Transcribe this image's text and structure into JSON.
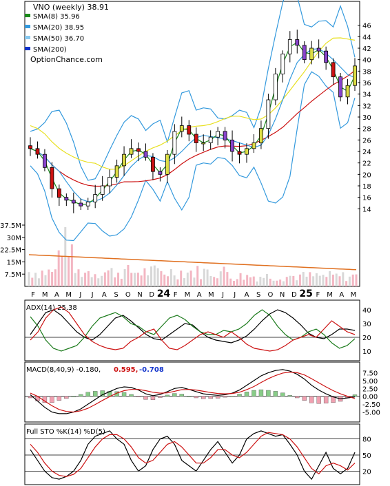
{
  "chart_data": [
    {
      "type": "candlestick",
      "panel": "price",
      "title": "VNO (weekly) 38.91",
      "watermark": "OptionChance.com",
      "legend": [
        {
          "label": "SMA(8) 35.96",
          "color": "#1a8a1a"
        },
        {
          "label": "SMA(20) 38.95",
          "color": "#3399dd"
        },
        {
          "label": "SMA(50) 36.70",
          "color": "#88c8ee"
        },
        {
          "label": "SMA(200)",
          "color": "#1133cc"
        }
      ],
      "ylim": [
        12,
        48
      ],
      "yticks": [
        "46",
        "44",
        "42",
        "40",
        "38",
        "36",
        "34",
        "32",
        "30",
        "28",
        "26",
        "24",
        "22",
        "20",
        "18",
        "16",
        "14"
      ],
      "volume_ticks": [
        "37.5M",
        "30M",
        "22.5M",
        "15M",
        "7.5M"
      ],
      "x_ticks": [
        "F",
        "M",
        "A",
        "M",
        "J",
        "J",
        "A",
        "S",
        "O",
        "N",
        "D",
        "24",
        "F",
        "M",
        "A",
        "M",
        "J",
        "J",
        "A",
        "S",
        "O",
        "N",
        "D",
        "25",
        "F",
        "M",
        "A",
        "M"
      ],
      "close": [
        24.5,
        23.5,
        21.2,
        17.5,
        16.0,
        15.5,
        15.0,
        14.5,
        15.2,
        16.5,
        18.0,
        19.5,
        21.5,
        23.5,
        24.5,
        24.0,
        23.0,
        20.5,
        20.0,
        23.5,
        27.5,
        28.5,
        27.0,
        25.5,
        25.5,
        26.5,
        27.5,
        26.0,
        24.0,
        23.5,
        24.5,
        25.5,
        28.0,
        33.0,
        37.5,
        41.0,
        43.5,
        42.5,
        40.0,
        42.0,
        41.5,
        39.5,
        37.0,
        33.5,
        35.5,
        38.9
      ],
      "sma8_last": 35.96,
      "sma20_last": 38.95,
      "sma50_last": 36.7
    },
    {
      "type": "line",
      "panel": "adx",
      "title": "ADX(14) 25.38",
      "ylim": [
        5,
        45
      ],
      "yticks": [
        "40",
        "30",
        "20",
        "10"
      ],
      "reference_line": 20,
      "series": [
        {
          "name": "ADX(14)",
          "color": "#000000",
          "values": [
            22,
            30,
            38,
            40,
            36,
            30,
            24,
            20,
            18,
            22,
            28,
            34,
            36,
            32,
            27,
            22,
            19,
            18,
            22,
            26,
            30,
            29,
            24,
            20,
            18,
            17,
            16,
            18,
            21,
            26,
            32,
            37,
            40,
            38,
            34,
            29,
            23,
            20,
            19,
            22,
            26,
            26,
            25
          ]
        },
        {
          "name": "+DI",
          "color": "#1a7a1a",
          "values": [
            35,
            28,
            18,
            12,
            10,
            12,
            14,
            20,
            28,
            34,
            36,
            38,
            35,
            30,
            28,
            24,
            22,
            28,
            34,
            36,
            33,
            28,
            24,
            22,
            22,
            25,
            24,
            26,
            30,
            36,
            40,
            36,
            28,
            22,
            18,
            20,
            24,
            26,
            22,
            16,
            12,
            14,
            19
          ]
        },
        {
          "name": "-DI",
          "color": "#cc1111",
          "values": [
            18,
            24,
            34,
            40,
            42,
            38,
            30,
            22,
            17,
            14,
            12,
            11,
            12,
            17,
            20,
            24,
            26,
            18,
            12,
            11,
            14,
            18,
            22,
            24,
            22,
            20,
            24,
            20,
            15,
            12,
            11,
            10,
            11,
            14,
            18,
            20,
            22,
            20,
            26,
            32,
            28,
            24,
            22
          ]
        }
      ]
    },
    {
      "type": "line",
      "panel": "macd",
      "title": "MACD(8,40,9) -0.180,",
      "macd_value": "0.595,",
      "signal_value": "-0.708",
      "ylim": [
        -7.5,
        10
      ],
      "yticks": [
        "7.50",
        "5.00",
        "2.50",
        "0.00",
        "-2.50",
        "-5.00"
      ],
      "series": [
        {
          "name": "MACD",
          "color": "#000000",
          "values": [
            0.5,
            -1.5,
            -3.5,
            -5.0,
            -5.5,
            -5.5,
            -5.0,
            -4.0,
            -2.5,
            -1.0,
            0.5,
            1.5,
            2.5,
            3.0,
            2.8,
            2.0,
            0.8,
            0.2,
            0.6,
            1.5,
            2.5,
            2.8,
            2.2,
            1.5,
            0.8,
            0.5,
            0.3,
            0.5,
            1.0,
            2.0,
            3.5,
            5.0,
            6.5,
            7.5,
            8.2,
            8.5,
            8.0,
            7.0,
            5.5,
            3.5,
            2.0,
            0.8,
            -0.2,
            -0.8,
            -0.5,
            -0.2
          ]
        },
        {
          "name": "Signal",
          "color": "#cc1111",
          "values": [
            1.0,
            0.0,
            -1.5,
            -3.0,
            -4.2,
            -4.8,
            -5.0,
            -4.6,
            -3.8,
            -2.6,
            -1.3,
            -0.1,
            1.0,
            1.8,
            2.2,
            2.2,
            1.8,
            1.3,
            1.0,
            1.1,
            1.6,
            2.1,
            2.2,
            2.0,
            1.6,
            1.2,
            0.9,
            0.8,
            0.9,
            1.3,
            2.1,
            3.1,
            4.4,
            5.6,
            6.6,
            7.4,
            7.7,
            7.5,
            6.8,
            5.6,
            4.3,
            3.0,
            1.8,
            0.8,
            0.0,
            -0.7
          ]
        },
        {
          "name": "Histogram",
          "color": "#33aa33",
          "values": [
            -0.5,
            -1.5,
            -2.0,
            -2.0,
            -1.3,
            -0.7,
            0.0,
            0.6,
            1.3,
            1.6,
            1.8,
            1.6,
            1.5,
            1.2,
            0.6,
            -0.2,
            -1.0,
            -1.1,
            -0.4,
            0.4,
            0.9,
            0.7,
            0.0,
            -0.5,
            -0.8,
            -0.7,
            -0.6,
            -0.3,
            0.1,
            0.7,
            1.4,
            1.9,
            2.1,
            1.9,
            1.6,
            1.1,
            0.3,
            -0.5,
            -1.3,
            -2.1,
            -2.3,
            -2.2,
            -2.0,
            -1.6,
            -0.5,
            0.5
          ]
        }
      ]
    },
    {
      "type": "line",
      "panel": "stochastic",
      "title": "Full STO %K(14) %D(5)",
      "ylim": [
        0,
        100
      ],
      "yticks": [
        "80",
        "50",
        "20"
      ],
      "reference_lines": [
        80,
        50,
        20
      ],
      "series": [
        {
          "name": "%K(14)",
          "color": "#000000",
          "values": [
            60,
            40,
            20,
            8,
            5,
            10,
            20,
            40,
            70,
            85,
            90,
            95,
            80,
            70,
            40,
            20,
            30,
            60,
            80,
            85,
            70,
            40,
            30,
            20,
            40,
            60,
            75,
            55,
            35,
            50,
            80,
            90,
            95,
            90,
            85,
            88,
            70,
            50,
            20,
            5,
            30,
            55,
            25,
            15,
            25,
            55
          ]
        },
        {
          "name": "%D(5)",
          "color": "#cc1111",
          "values": [
            70,
            55,
            35,
            20,
            12,
            10,
            14,
            25,
            45,
            65,
            80,
            88,
            88,
            80,
            65,
            45,
            35,
            40,
            55,
            70,
            75,
            65,
            50,
            35,
            35,
            45,
            60,
            60,
            50,
            45,
            55,
            70,
            85,
            92,
            90,
            88,
            80,
            65,
            45,
            25,
            15,
            30,
            35,
            30,
            22,
            35
          ]
        }
      ]
    }
  ]
}
